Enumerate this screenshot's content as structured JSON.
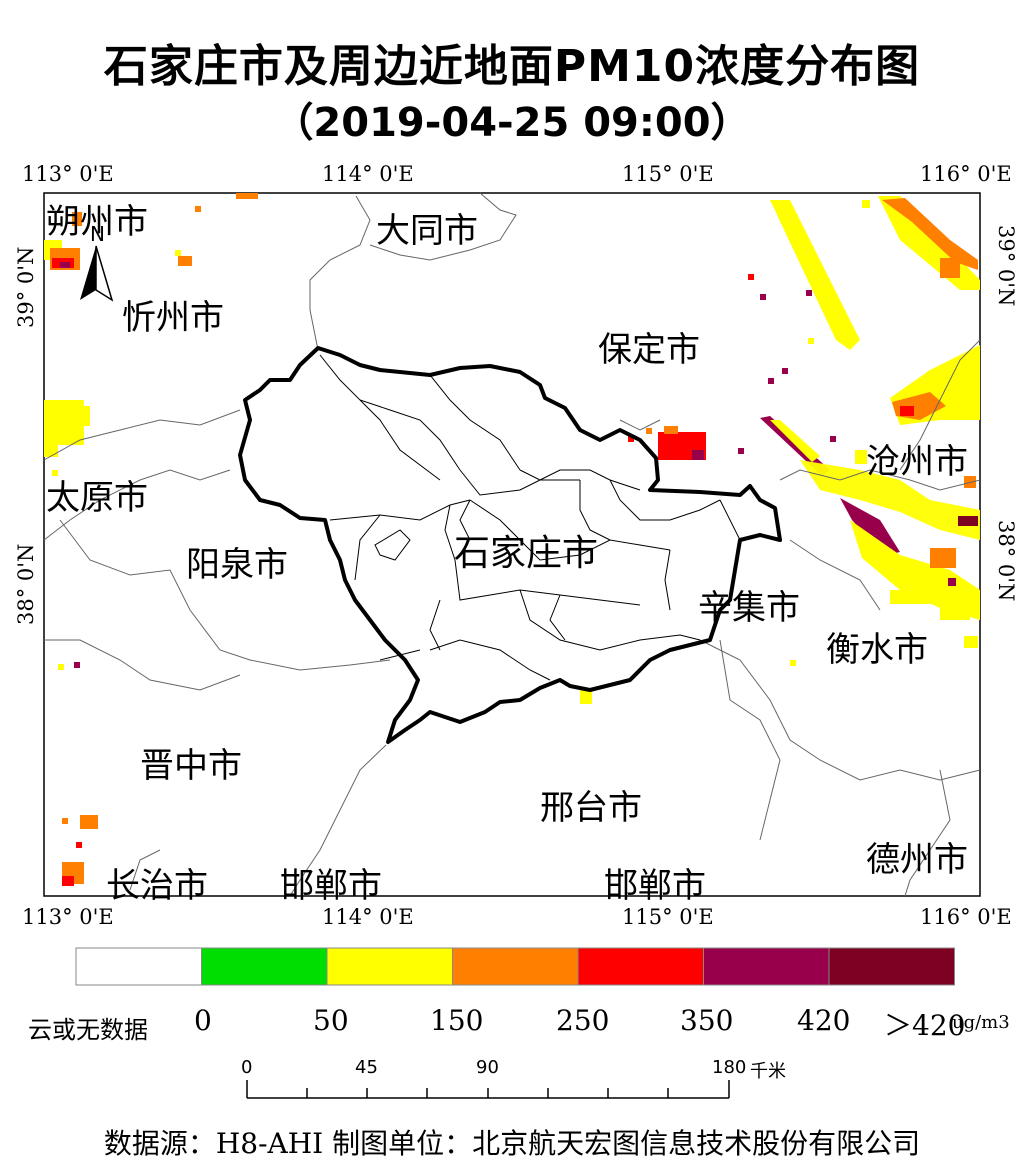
{
  "title": {
    "line1": "石家庄市及周边近地面PM10浓度分布图",
    "line2": "（2019-04-25 09:00）"
  },
  "axes": {
    "lon_labels": [
      "113° 0'E",
      "114° 0'E",
      "115° 0'E",
      "116° 0'E"
    ],
    "lat_labels": [
      "39° 0'N",
      "38° 0'N"
    ]
  },
  "cities": [
    {
      "key": "shuozhou",
      "label": "朔州市"
    },
    {
      "key": "datong",
      "label": "大同市"
    },
    {
      "key": "xinzhou",
      "label": "忻州市"
    },
    {
      "key": "baoding",
      "label": "保定市"
    },
    {
      "key": "taiyuan",
      "label": "太原市"
    },
    {
      "key": "cangzhou",
      "label": "沧州市"
    },
    {
      "key": "yangquan",
      "label": "阳泉市"
    },
    {
      "key": "shijiazhuang",
      "label": "石家庄市"
    },
    {
      "key": "xinji",
      "label": "辛集市"
    },
    {
      "key": "hengshui",
      "label": "衡水市"
    },
    {
      "key": "jinzhong",
      "label": "晋中市"
    },
    {
      "key": "xingtai",
      "label": "邢台市"
    },
    {
      "key": "dezhou",
      "label": "德州市"
    },
    {
      "key": "changzhi",
      "label": "长治市"
    },
    {
      "key": "handan1",
      "label": "邯郸市"
    },
    {
      "key": "handan2",
      "label": "邯郸市"
    }
  ],
  "north_arrow": {
    "label": "N"
  },
  "legend": {
    "colors": [
      "#ffffff",
      "#00dd00",
      "#ffff00",
      "#ff7f00",
      "#ff0000",
      "#99004c",
      "#7e0023"
    ],
    "tick_labels": [
      "0",
      "50",
      "150",
      "250",
      "350",
      "420",
      "＞420"
    ],
    "no_data_label": "云或无数据",
    "unit": "ug/m3"
  },
  "scale_bar": {
    "labels": [
      "0",
      "45",
      "90",
      "180"
    ],
    "unit": "千米"
  },
  "footer": "数据源：H8-AHI 制图单位：北京航天宏图信息技术股份有限公司"
}
